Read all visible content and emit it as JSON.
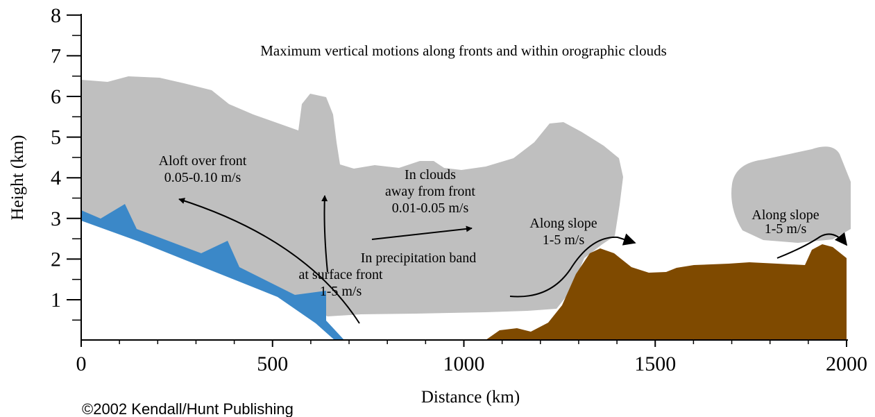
{
  "title": "Maximum vertical motions along fronts and within orographic clouds",
  "x_axis": {
    "label": "Distance (km)",
    "ticks": [
      0,
      500,
      1000,
      1500,
      2000
    ]
  },
  "y_axis": {
    "label": "Height (km)",
    "ticks": [
      1,
      2,
      3,
      4,
      5,
      6,
      7,
      8
    ]
  },
  "annotations": [
    {
      "lines": [
        "Aloft over front",
        "0.05-0.10 m/s"
      ]
    },
    {
      "lines": [
        "In clouds",
        "away from front",
        "0.01-0.05 m/s"
      ]
    },
    {
      "lines": [
        "In precipitation band",
        "at surface front",
        "1-5 m/s"
      ]
    },
    {
      "lines": [
        "Along slope",
        "1-5 m/s"
      ]
    },
    {
      "lines": [
        "Along slope",
        "1-5 m/s"
      ]
    }
  ],
  "copyright": "©2002 Kendall/Hunt Publishing"
}
